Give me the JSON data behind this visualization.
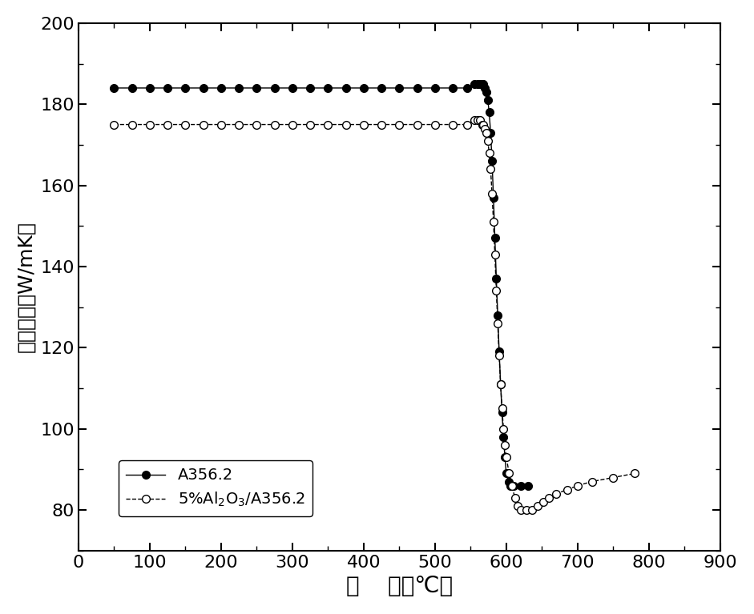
{
  "title": "",
  "xlabel": "温    度（℃）",
  "ylabel": "导热系数（W/mK）",
  "xlim": [
    0,
    900
  ],
  "ylim": [
    70,
    200
  ],
  "xticks": [
    0,
    100,
    200,
    300,
    400,
    500,
    600,
    700,
    800,
    900
  ],
  "yticks": [
    80,
    100,
    120,
    140,
    160,
    180,
    200
  ],
  "series1_label": "A356.2",
  "series2_label": "5%Al$_2$O$_3$/A356.2",
  "background_color": "white",
  "series1_x": [
    50,
    75,
    100,
    125,
    150,
    175,
    200,
    225,
    250,
    275,
    300,
    325,
    350,
    375,
    400,
    425,
    450,
    475,
    500,
    525,
    545,
    555,
    560,
    563,
    566,
    568,
    570,
    572,
    574,
    576,
    578,
    580,
    582,
    584,
    586,
    588,
    590,
    592,
    594,
    596,
    598,
    600,
    603,
    606,
    610,
    620,
    630
  ],
  "series1_y": [
    184,
    184,
    184,
    184,
    184,
    184,
    184,
    184,
    184,
    184,
    184,
    184,
    184,
    184,
    184,
    184,
    184,
    184,
    184,
    184,
    184,
    185,
    185,
    185,
    185,
    185,
    184,
    183,
    181,
    178,
    173,
    166,
    157,
    147,
    137,
    128,
    119,
    111,
    104,
    98,
    93,
    89,
    87,
    86,
    86,
    86,
    86
  ],
  "series2_x": [
    50,
    75,
    100,
    125,
    150,
    175,
    200,
    225,
    250,
    275,
    300,
    325,
    350,
    375,
    400,
    425,
    450,
    475,
    500,
    525,
    545,
    555,
    560,
    563,
    566,
    568,
    570,
    572,
    574,
    576,
    578,
    580,
    582,
    584,
    586,
    588,
    590,
    592,
    594,
    596,
    598,
    600,
    604,
    608,
    612,
    616,
    620,
    628,
    636,
    644,
    652,
    660,
    670,
    685,
    700,
    720,
    750,
    780
  ],
  "series2_y": [
    175,
    175,
    175,
    175,
    175,
    175,
    175,
    175,
    175,
    175,
    175,
    175,
    175,
    175,
    175,
    175,
    175,
    175,
    175,
    175,
    175,
    176,
    176,
    176,
    175,
    175,
    174,
    173,
    171,
    168,
    164,
    158,
    151,
    143,
    134,
    126,
    118,
    111,
    105,
    100,
    96,
    93,
    89,
    86,
    83,
    81,
    80,
    80,
    80,
    81,
    82,
    83,
    84,
    85,
    86,
    87,
    88,
    89
  ]
}
